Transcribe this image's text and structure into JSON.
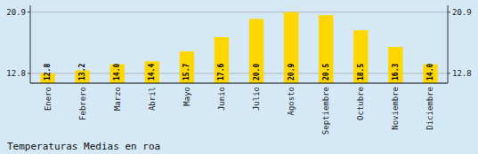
{
  "chart_data": {
    "type": "bar",
    "title": "Temperaturas Medias en roa",
    "categories": [
      "Enero",
      "Febrero",
      "Marzo",
      "Abril",
      "Mayo",
      "Junio",
      "Julio",
      "Agosto",
      "Septiembre",
      "Octubre",
      "Noviembre",
      "Diciembre"
    ],
    "values": [
      12.8,
      13.2,
      14.0,
      14.4,
      15.7,
      17.6,
      20.0,
      20.9,
      20.5,
      18.5,
      16.3,
      14.0
    ],
    "value_labels": [
      "12.8",
      "13.2",
      "14.0",
      "14.4",
      "15.7",
      "17.6",
      "20.0",
      "20.9",
      "20.5",
      "18.5",
      "16.3",
      "14.0"
    ],
    "color": "#FFD700",
    "ylim": [
      11.5,
      21.8
    ],
    "yticks": [
      12.8,
      20.9
    ],
    "y2lim": [
      11.5,
      21.8
    ],
    "y2ticks": [
      12.8,
      20.9
    ],
    "grid": true,
    "data_labels": true
  }
}
